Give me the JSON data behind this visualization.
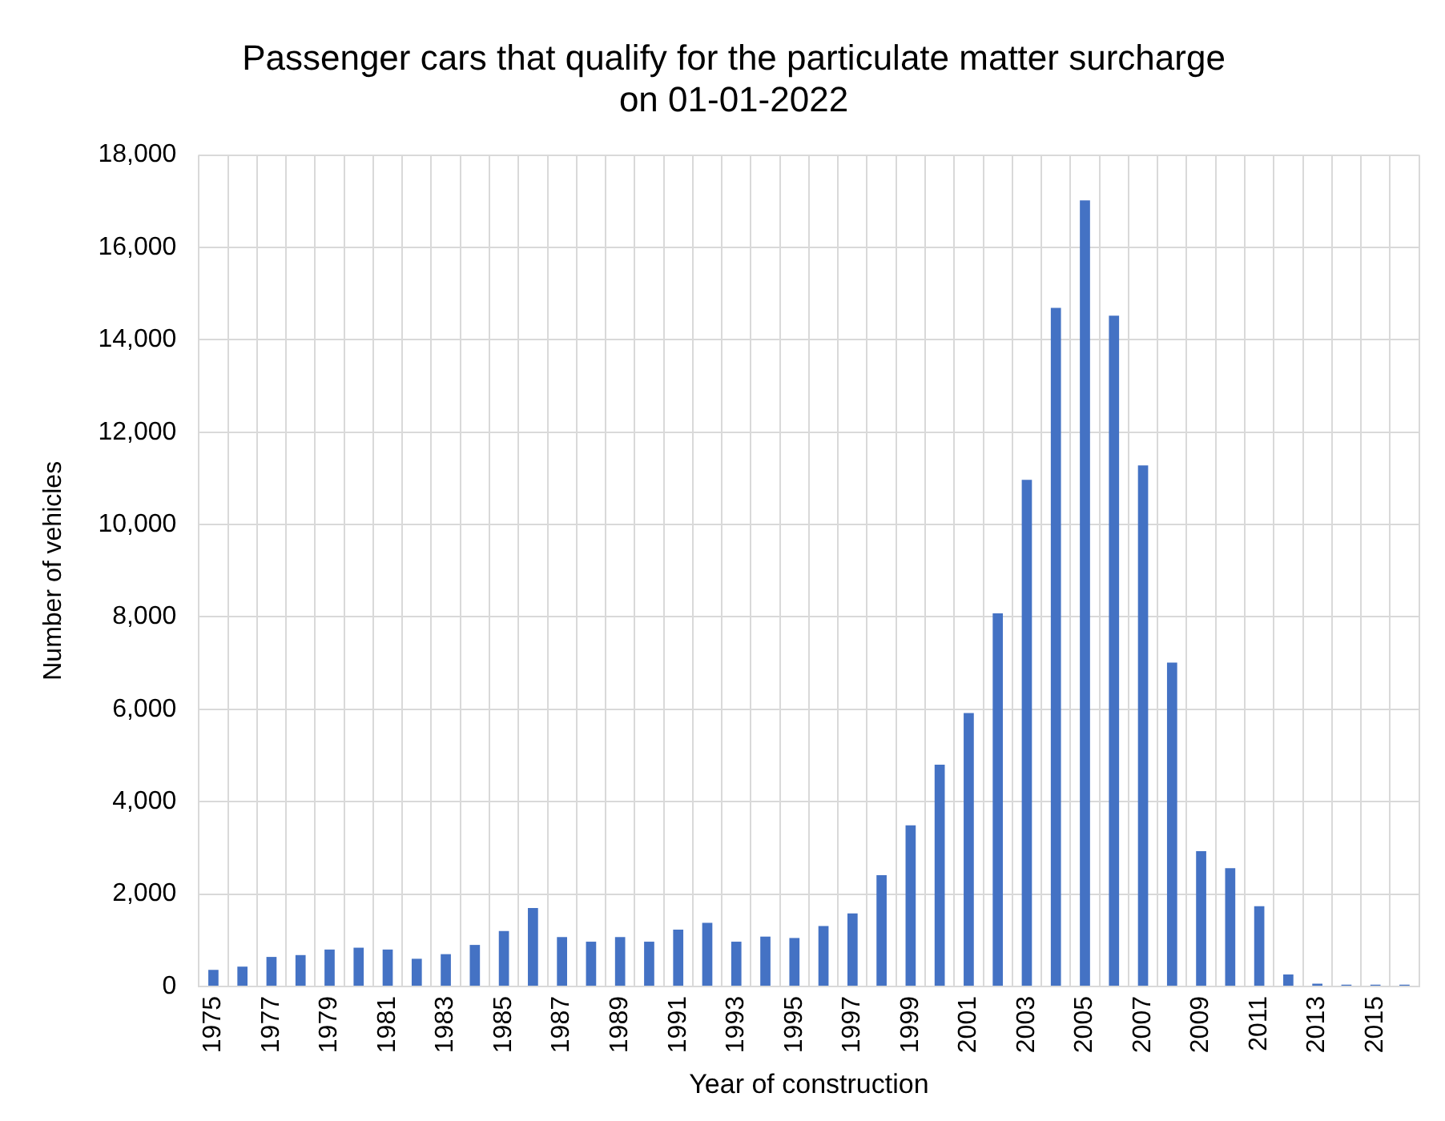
{
  "chart_data": {
    "type": "bar",
    "title": "Passenger cars that qualify for the particulate matter surcharge\non 01-01-2022",
    "xlabel": "Year of construction",
    "ylabel": "Number of vehicles",
    "categories": [
      "1975",
      null,
      "1977",
      null,
      "1979",
      null,
      "1981",
      null,
      "1983",
      null,
      "1985",
      null,
      "1987",
      null,
      "1989",
      null,
      "1991",
      null,
      "1993",
      null,
      "1995",
      null,
      "1997",
      null,
      "1999",
      null,
      "2001",
      null,
      "2003",
      null,
      "2005",
      null,
      "2007",
      null,
      "2009",
      null,
      "2011",
      null,
      "2013",
      null,
      "2015",
      null
    ],
    "values": [
      360,
      430,
      640,
      680,
      800,
      840,
      800,
      600,
      700,
      900,
      1200,
      1700,
      1070,
      970,
      1070,
      970,
      1230,
      1380,
      970,
      1080,
      1050,
      1310,
      1580,
      2410,
      3490,
      4800,
      5920,
      8080,
      10970,
      14690,
      17020,
      14520,
      11280,
      7010,
      2930,
      2560,
      1740,
      260,
      60,
      40,
      40,
      40
    ],
    "color": "#4472c4",
    "ylim": [
      0,
      18000
    ],
    "yticks": [
      {
        "value": 0,
        "label": "0"
      },
      {
        "value": 2000,
        "label": "2,000"
      },
      {
        "value": 4000,
        "label": "4,000"
      },
      {
        "value": 6000,
        "label": "6,000"
      },
      {
        "value": 8000,
        "label": "8,000"
      },
      {
        "value": 10000,
        "label": "10,000"
      },
      {
        "value": 12000,
        "label": "12,000"
      },
      {
        "value": 14000,
        "label": "14,000"
      },
      {
        "value": 16000,
        "label": "16,000"
      },
      {
        "value": 18000,
        "label": "18,000"
      }
    ],
    "grid": true
  }
}
